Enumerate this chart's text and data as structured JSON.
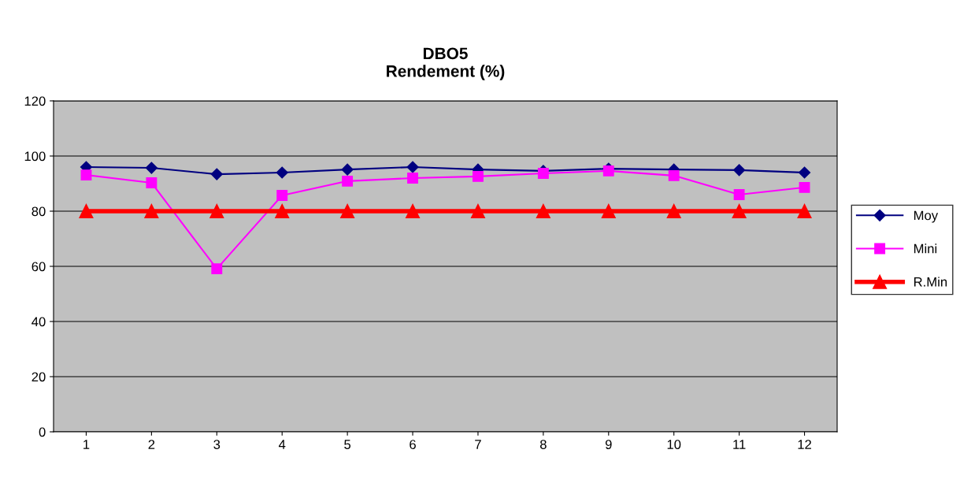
{
  "chart_data": {
    "type": "line",
    "title": "DBO5\nRendement (%)",
    "categories": [
      "1",
      "2",
      "3",
      "4",
      "5",
      "6",
      "7",
      "8",
      "9",
      "10",
      "11",
      "12"
    ],
    "series": [
      {
        "name": "Moy",
        "color": "#000080",
        "marker": "diamond",
        "values": [
          96,
          95.7,
          93.4,
          94,
          95.1,
          96,
          95.1,
          94.6,
          95.4,
          95.1,
          94.9,
          94
        ]
      },
      {
        "name": "Mini",
        "color": "#ff00ff",
        "marker": "square",
        "values": [
          93.1,
          90.3,
          59.1,
          85.7,
          90.9,
          92,
          92.6,
          93.7,
          94.6,
          92.9,
          86,
          88.6
        ]
      },
      {
        "name": "R.Min",
        "color": "#ff0000",
        "marker": "triangle",
        "values": [
          80,
          80,
          80,
          80,
          80,
          80,
          80,
          80,
          80,
          80,
          80,
          80
        ]
      }
    ],
    "ylim": [
      0,
      120
    ],
    "yticks": [
      0,
      20,
      40,
      60,
      80,
      100,
      120
    ],
    "grid": "y",
    "legend": "right"
  }
}
